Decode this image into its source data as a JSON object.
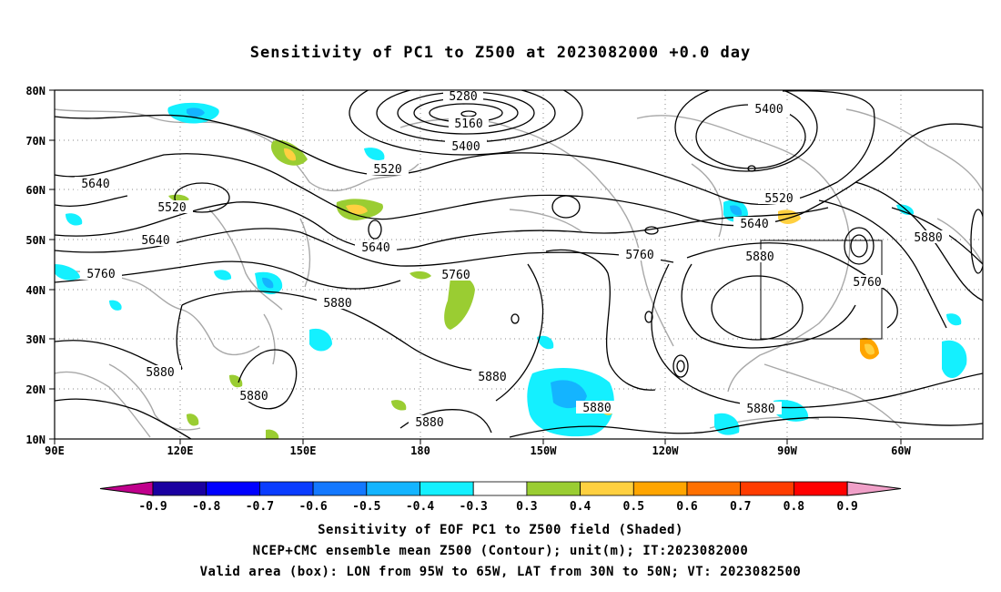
{
  "title": "Sensitivity of PC1 to Z500 at 2023082000 +0.0 day",
  "map": {
    "lat_labels": [
      "80N",
      "70N",
      "60N",
      "50N",
      "40N",
      "30N",
      "20N",
      "10N"
    ],
    "lon_labels": [
      "90E",
      "120E",
      "150E",
      "180",
      "150W",
      "120W",
      "90W",
      "60W"
    ],
    "contour_labels": [
      "5280",
      "5160",
      "5400",
      "5520",
      "5640",
      "5400",
      "5520",
      "5640",
      "5640",
      "5520",
      "5640",
      "5760",
      "5880",
      "5760",
      "5880",
      "5760",
      "5880",
      "5880",
      "5880",
      "5880",
      "5880",
      "5880",
      "5760",
      "5880"
    ],
    "valid_box": {
      "lon_west": "95W",
      "lon_east": "65W",
      "lat_south": "30N",
      "lat_north": "50N"
    }
  },
  "colorbar": {
    "labels": [
      "-0.9",
      "-0.8",
      "-0.7",
      "-0.6",
      "-0.5",
      "-0.4",
      "-0.3",
      "0.3",
      "0.4",
      "0.5",
      "0.6",
      "0.7",
      "0.8",
      "0.9"
    ],
    "colors": [
      "#1a00a0",
      "#0000ff",
      "#0a3cff",
      "#1478ff",
      "#14b4ff",
      "#14f0ff",
      "#ffffff",
      "#9acd32",
      "#ffd040",
      "#ffa500",
      "#ff7000",
      "#ff3c00",
      "#ff0000"
    ],
    "end_low_color": "#c0008c",
    "end_high_color": "#f0a0c8"
  },
  "captions": {
    "line1": "Sensitivity of EOF PC1 to Z500 field (Shaded)",
    "line2": "NCEP+CMC ensemble mean Z500 (Contour); unit(m); IT:2023082000",
    "line3": "Valid area (box): LON from 95W to 65W, LAT from 30N to 50N; VT: 2023082500"
  }
}
